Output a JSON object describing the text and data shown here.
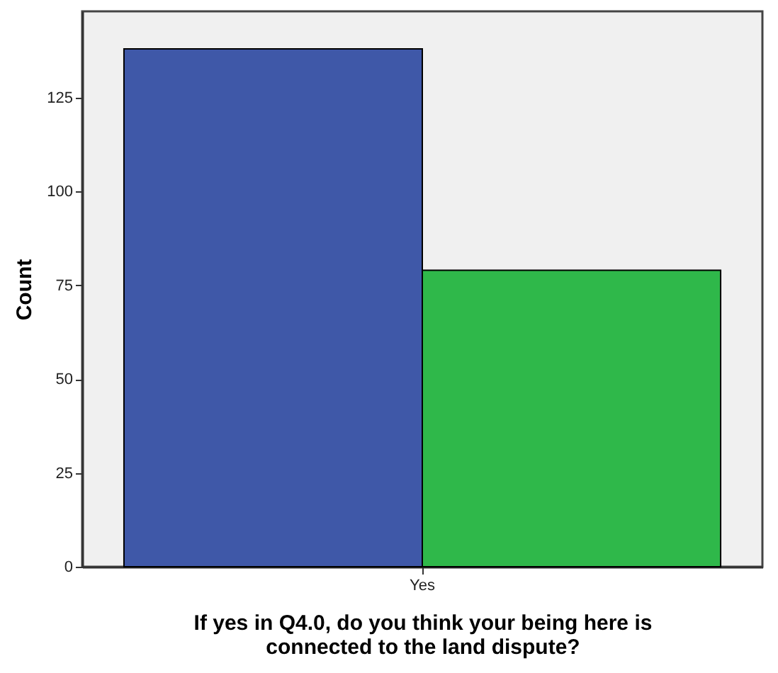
{
  "chart_data": {
    "type": "bar",
    "xlabel": "If yes in Q4.0, do you think your being here is\nconnected to the land dispute?",
    "ylabel": "Count",
    "categories": [
      "Yes"
    ],
    "series": [
      {
        "color": "#3f58a8",
        "values": [
          138
        ]
      },
      {
        "color": "#2fb84a",
        "values": [
          79
        ]
      }
    ],
    "ylim": [
      0,
      148
    ],
    "yticks": [
      0,
      25,
      50,
      75,
      100,
      125
    ],
    "grid": false
  }
}
